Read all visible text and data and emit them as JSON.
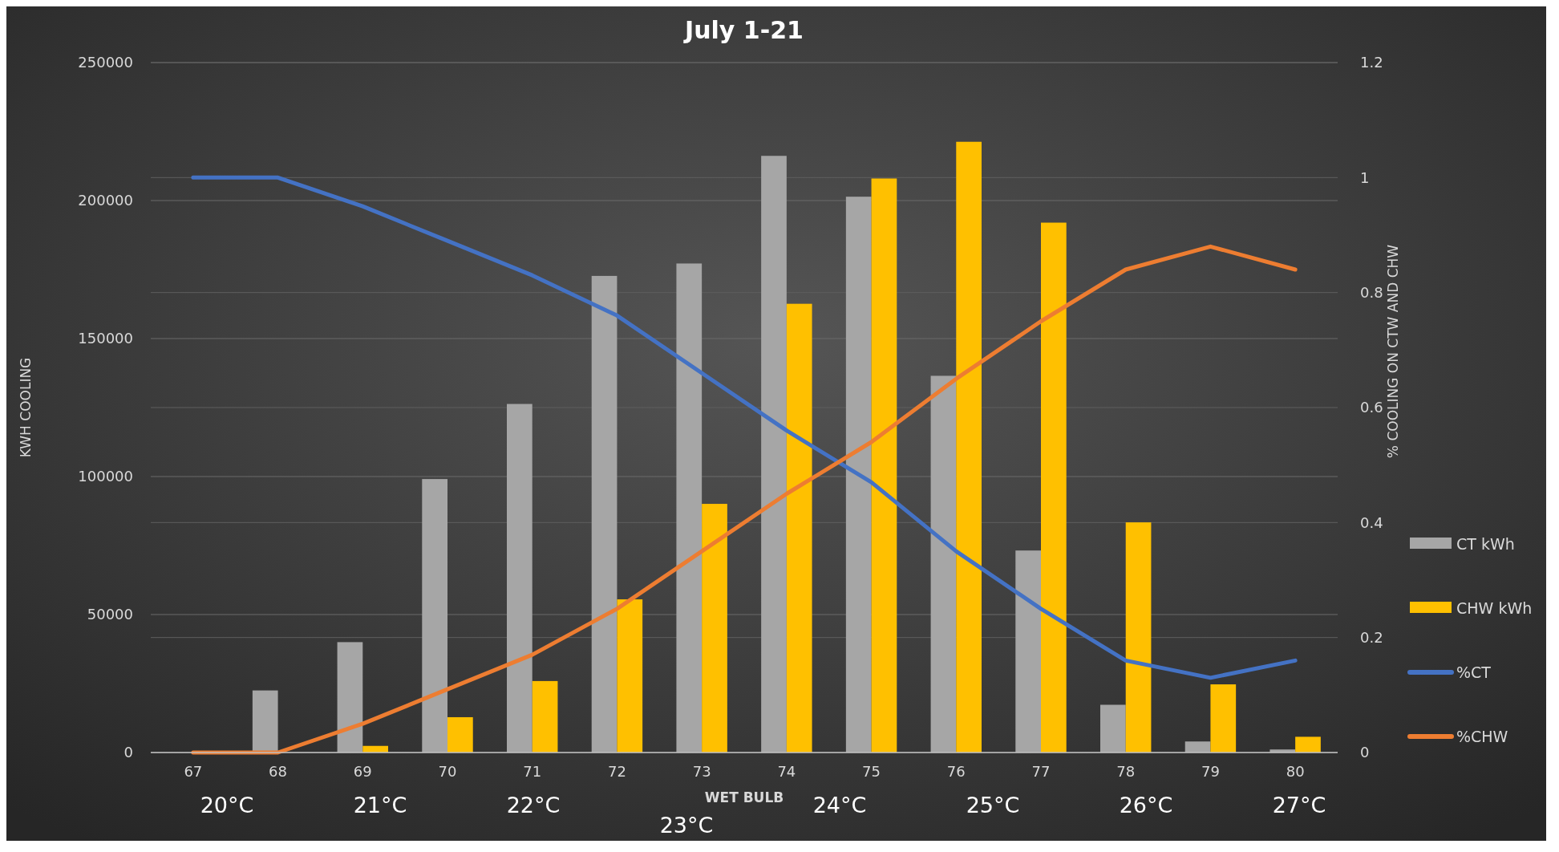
{
  "chart_data": {
    "type": "bar",
    "title": "July 1-21",
    "xlabel": "WET BULB",
    "ylabel": "KWH COOLING",
    "y2label": "% COOLING ON CTW AND CHW",
    "categories": [
      "67",
      "68",
      "69",
      "70",
      "71",
      "72",
      "73",
      "74",
      "75",
      "76",
      "77",
      "78",
      "79",
      "80"
    ],
    "series": [
      {
        "name": "CT kWh",
        "color": "#a6a6a6",
        "values": [
          0,
          22500,
          40000,
          99100,
          126300,
          172700,
          177200,
          216200,
          201400,
          136500,
          73200,
          17300,
          4000,
          1100
        ]
      },
      {
        "name": "CHW kWh",
        "color": "#ffc000",
        "values": [
          0,
          0,
          2400,
          12800,
          25900,
          55500,
          90100,
          162600,
          208000,
          221300,
          192000,
          83400,
          24700,
          5700
        ]
      },
      {
        "name": "%CT",
        "type": "line",
        "axis": "y2",
        "color": "#4472c4",
        "values": [
          1.0,
          1.0,
          0.95,
          0.89,
          0.83,
          0.76,
          0.66,
          0.56,
          0.47,
          0.35,
          0.25,
          0.16,
          0.13,
          0.16
        ]
      },
      {
        "name": "%CHW",
        "type": "line",
        "axis": "y2",
        "color": "#ed7d31",
        "values": [
          0,
          0,
          0.05,
          0.11,
          0.17,
          0.25,
          0.35,
          0.45,
          0.54,
          0.65,
          0.75,
          0.84,
          0.88,
          0.84
        ]
      }
    ],
    "ylim": [
      0,
      250000
    ],
    "yticks": [
      0,
      50000,
      100000,
      150000,
      200000,
      250000
    ],
    "y2lim": [
      0,
      1.2
    ],
    "y2ticks": [
      0,
      0.2,
      0.4,
      0.6,
      0.8,
      1,
      1.2
    ],
    "grid": true,
    "legend": "right",
    "marker": "none",
    "line_style": "solid",
    "annotations": [
      "20°C",
      "21°C",
      "22°C",
      "23°C",
      "24°C",
      "25°C",
      "26°C",
      "27°C"
    ]
  }
}
